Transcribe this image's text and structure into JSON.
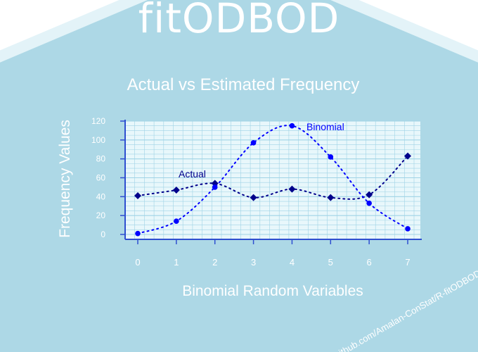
{
  "sticker": {
    "title": "fitODBOD",
    "url": "github.com/Amalan-ConStat/R-fitODBOD",
    "colors": {
      "hex_fill": "#add8e6",
      "hex_border": "#e3f3f8",
      "text": "#ffffff",
      "actual_series": "#00008b",
      "binomial_series": "#0000ff",
      "plot_bg": "#e8f7fb",
      "grid": "#9fd3e6",
      "axis": "#2f4fd0"
    }
  },
  "chart_data": {
    "type": "scatter",
    "title": "Actual vs Estimated Frequency",
    "xlabel": "Binomial Random Variables",
    "ylabel": "Frequency Values",
    "x": [
      0,
      1,
      2,
      3,
      4,
      5,
      6,
      7
    ],
    "xticks": [
      "0",
      "1",
      "2",
      "3",
      "4",
      "5",
      "6",
      "7"
    ],
    "yticks": [
      "0",
      "20",
      "40",
      "60",
      "80",
      "100",
      "120"
    ],
    "ylim": [
      0,
      120
    ],
    "grid": true,
    "series": [
      {
        "name": "Actual",
        "values": [
          41,
          47,
          54,
          39,
          48,
          39,
          42,
          83
        ],
        "marker": "diamond"
      },
      {
        "name": "Binomial",
        "values": [
          1,
          14,
          50,
          97,
          115,
          82,
          33,
          6
        ],
        "marker": "circle"
      }
    ]
  }
}
